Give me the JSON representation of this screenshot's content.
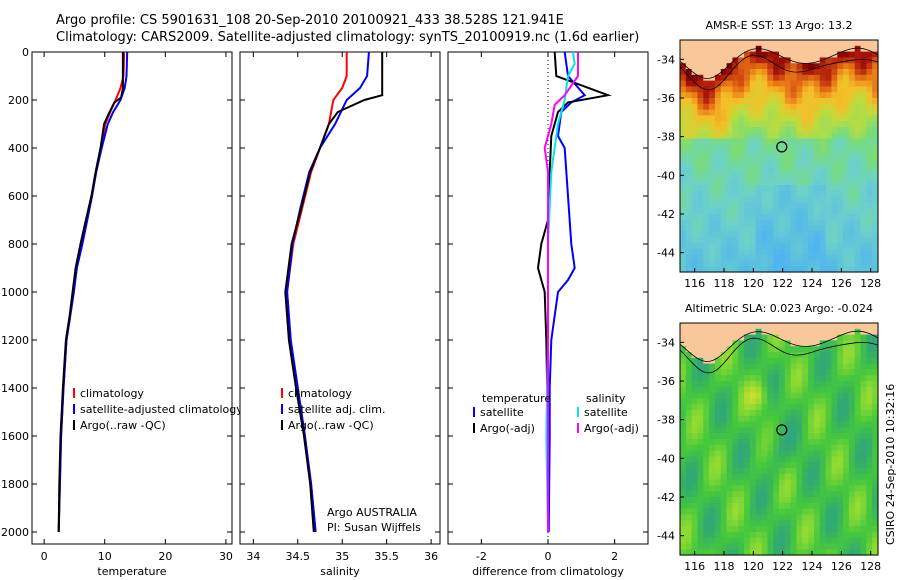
{
  "header": {
    "line1": "Argo profile: CS 5901631_108 20-Sep-2010 20100921_433 38.528S 121.941E",
    "line2": "Climatology: CARS2009. Satellite-adjusted climatology: synTS_20100919.nc (1.6d earlier)"
  },
  "credit": "CSIRO 24-Sep-2010 10:32:16",
  "colors": {
    "climatology": "#ff0000",
    "satellite": "#0000ff",
    "argo": "#000000",
    "sat_diff": "#00e5ee",
    "argo_diff": "#ff00ff",
    "land": "#f8c89a"
  },
  "chart_data": [
    {
      "type": "line",
      "xlabel": "temperature",
      "xlim": [
        -2,
        31
      ],
      "ylim": [
        0,
        2050
      ],
      "y_reversed": true,
      "xticks": [
        0,
        10,
        20,
        30
      ],
      "yticks": [
        0,
        200,
        400,
        600,
        800,
        1000,
        1200,
        1400,
        1600,
        1800,
        2000
      ],
      "legend": [
        "climatology",
        "satellite-adjusted climatology",
        "Argo(..raw -QC)"
      ],
      "series": [
        {
          "name": "climatology",
          "color": "#ff0000",
          "points": [
            [
              13.2,
              0
            ],
            [
              13.1,
              100
            ],
            [
              12.6,
              150
            ],
            [
              11.8,
              200
            ],
            [
              10.9,
              250
            ],
            [
              10.1,
              300
            ],
            [
              9.4,
              400
            ],
            [
              8.6,
              500
            ],
            [
              7.9,
              600
            ],
            [
              7.1,
              700
            ],
            [
              6.3,
              800
            ],
            [
              5.4,
              900
            ],
            [
              4.9,
              1000
            ],
            [
              4.3,
              1100
            ],
            [
              3.7,
              1200
            ],
            [
              3.2,
              1400
            ],
            [
              2.8,
              1600
            ],
            [
              2.6,
              1800
            ],
            [
              2.4,
              2000
            ]
          ]
        },
        {
          "name": "satellite-adjusted climatology",
          "color": "#0000ff",
          "points": [
            [
              13.7,
              0
            ],
            [
              13.6,
              100
            ],
            [
              13.3,
              150
            ],
            [
              12.6,
              200
            ],
            [
              11.4,
              250
            ],
            [
              10.5,
              300
            ],
            [
              9.5,
              400
            ],
            [
              8.6,
              500
            ],
            [
              7.9,
              600
            ],
            [
              7.1,
              700
            ],
            [
              6.3,
              800
            ],
            [
              5.4,
              900
            ],
            [
              4.9,
              1000
            ],
            [
              4.3,
              1100
            ],
            [
              3.7,
              1200
            ],
            [
              3.2,
              1400
            ],
            [
              2.8,
              1600
            ],
            [
              2.6,
              1800
            ],
            [
              2.4,
              2000
            ]
          ]
        },
        {
          "name": "Argo(..raw -QC)",
          "color": "#000000",
          "points": [
            [
              13.0,
              0
            ],
            [
              13.0,
              150
            ],
            [
              12.7,
              190
            ],
            [
              11.6,
              210
            ],
            [
              10.6,
              260
            ],
            [
              9.9,
              300
            ],
            [
              9.3,
              400
            ],
            [
              8.5,
              500
            ],
            [
              7.8,
              600
            ],
            [
              6.9,
              700
            ],
            [
              6.0,
              800
            ],
            [
              5.2,
              900
            ],
            [
              4.7,
              1000
            ],
            [
              4.2,
              1100
            ],
            [
              3.6,
              1200
            ],
            [
              3.1,
              1400
            ],
            [
              2.7,
              1600
            ],
            [
              2.5,
              1800
            ],
            [
              2.4,
              2000
            ]
          ]
        }
      ]
    },
    {
      "type": "line",
      "xlabel": "salinity",
      "xlim": [
        33.85,
        36.1
      ],
      "ylim": [
        0,
        2050
      ],
      "y_reversed": true,
      "xticks": [
        34,
        34.5,
        35,
        35.5,
        36
      ],
      "xtick_labels": [
        "34",
        "34.5",
        "35",
        "35.5",
        "36"
      ],
      "yticks": [
        0,
        200,
        400,
        600,
        800,
        1000,
        1200,
        1400,
        1600,
        1800,
        2000
      ],
      "legend": [
        "climatology",
        "satellite adj. clim.",
        "Argo(..raw -QC)"
      ],
      "annotations": [
        "Argo AUSTRALIA",
        "PI: Susan Wijffels"
      ],
      "series": [
        {
          "name": "climatology",
          "color": "#ff0000",
          "points": [
            [
              35.05,
              0
            ],
            [
              35.05,
              100
            ],
            [
              35.0,
              150
            ],
            [
              34.9,
              200
            ],
            [
              34.85,
              300
            ],
            [
              34.75,
              400
            ],
            [
              34.65,
              500
            ],
            [
              34.55,
              650
            ],
            [
              34.45,
              800
            ],
            [
              34.38,
              1000
            ],
            [
              34.42,
              1200
            ],
            [
              34.5,
              1400
            ],
            [
              34.58,
              1600
            ],
            [
              34.65,
              1800
            ],
            [
              34.7,
              2000
            ]
          ]
        },
        {
          "name": "satellite adj. clim.",
          "color": "#0000ff",
          "points": [
            [
              35.3,
              0
            ],
            [
              35.28,
              100
            ],
            [
              35.2,
              150
            ],
            [
              35.05,
              200
            ],
            [
              34.92,
              300
            ],
            [
              34.75,
              400
            ],
            [
              34.63,
              500
            ],
            [
              34.53,
              650
            ],
            [
              34.44,
              800
            ],
            [
              34.38,
              1000
            ],
            [
              34.42,
              1200
            ],
            [
              34.5,
              1400
            ],
            [
              34.58,
              1600
            ],
            [
              34.65,
              1800
            ],
            [
              34.7,
              2000
            ]
          ]
        },
        {
          "name": "Argo(..raw -QC)",
          "color": "#000000",
          "points": [
            [
              35.45,
              0
            ],
            [
              35.45,
              180
            ],
            [
              35.25,
              200
            ],
            [
              34.95,
              250
            ],
            [
              34.85,
              300
            ],
            [
              34.75,
              400
            ],
            [
              34.64,
              500
            ],
            [
              34.54,
              650
            ],
            [
              34.43,
              800
            ],
            [
              34.36,
              1000
            ],
            [
              34.4,
              1200
            ],
            [
              34.48,
              1400
            ],
            [
              34.57,
              1600
            ],
            [
              34.64,
              1800
            ],
            [
              34.68,
              2000
            ]
          ]
        }
      ]
    },
    {
      "type": "line",
      "xlabel": "difference from climatology",
      "xlim": [
        -3,
        3
      ],
      "ylim": [
        0,
        2050
      ],
      "y_reversed": true,
      "xticks": [
        -2,
        0,
        2
      ],
      "yticks": [
        0,
        200,
        400,
        600,
        800,
        1000,
        1200,
        1400,
        1600,
        1800,
        2000
      ],
      "legend_groups": [
        {
          "title": "temperature",
          "items": [
            "satellite",
            "Argo(-adj)"
          ]
        },
        {
          "title": "salinity",
          "items": [
            "satellite",
            "Argo(-adj)"
          ]
        }
      ],
      "series": [
        {
          "name": "temperature satellite",
          "color": "#0000ff",
          "points": [
            [
              0.5,
              0
            ],
            [
              0.6,
              100
            ],
            [
              1.1,
              180
            ],
            [
              0.7,
              210
            ],
            [
              0.4,
              250
            ],
            [
              0.3,
              350
            ],
            [
              0.5,
              400
            ],
            [
              0.6,
              600
            ],
            [
              0.7,
              800
            ],
            [
              0.8,
              900
            ],
            [
              0.6,
              950
            ],
            [
              0.3,
              1000
            ],
            [
              0.1,
              1200
            ],
            [
              0.05,
              1400
            ],
            [
              0.05,
              1600
            ],
            [
              0.02,
              2000
            ]
          ]
        },
        {
          "name": "temperature Argo(-adj)",
          "color": "#000000",
          "points": [
            [
              0.2,
              0
            ],
            [
              0.25,
              100
            ],
            [
              1.8,
              180
            ],
            [
              0.6,
              210
            ],
            [
              0.3,
              250
            ],
            [
              0.1,
              350
            ],
            [
              0.05,
              500
            ],
            [
              0.0,
              700
            ],
            [
              -0.2,
              800
            ],
            [
              -0.3,
              900
            ],
            [
              -0.1,
              1000
            ],
            [
              -0.05,
              1200
            ],
            [
              0.0,
              1600
            ],
            [
              0.0,
              2000
            ]
          ]
        },
        {
          "name": "salinity satellite",
          "color": "#00e5ee",
          "points": [
            [
              0.75,
              0
            ],
            [
              0.8,
              50
            ],
            [
              0.6,
              100
            ],
            [
              0.5,
              200
            ],
            [
              0.3,
              300
            ],
            [
              0.1,
              500
            ],
            [
              0.0,
              800
            ],
            [
              0.0,
              1200
            ],
            [
              -0.05,
              1600
            ],
            [
              0.0,
              2000
            ]
          ]
        },
        {
          "name": "salinity Argo(-adj)",
          "color": "#ff00ff",
          "points": [
            [
              0.9,
              0
            ],
            [
              0.9,
              100
            ],
            [
              0.5,
              180
            ],
            [
              0.2,
              220
            ],
            [
              0.1,
              300
            ],
            [
              -0.1,
              400
            ],
            [
              0.0,
              500
            ],
            [
              0.0,
              800
            ],
            [
              0.0,
              1200
            ],
            [
              0.0,
              2000
            ]
          ]
        }
      ]
    },
    {
      "type": "heatmap",
      "title": "AMSR-E SST: 13 Argo: 13.2",
      "xlim": [
        115,
        128.5
      ],
      "ylim": [
        -45,
        -33
      ],
      "xticks": [
        116,
        118,
        120,
        122,
        124,
        126,
        128
      ],
      "yticks": [
        -34,
        -36,
        -38,
        -40,
        -42,
        -44
      ],
      "marker": [
        121.941,
        -38.528
      ],
      "grid": false
    },
    {
      "type": "heatmap",
      "title": "Altimetric SLA: 0.023 Argo: -0.024",
      "xlim": [
        115,
        128.5
      ],
      "ylim": [
        -45,
        -33
      ],
      "xticks": [
        116,
        118,
        120,
        122,
        124,
        126,
        128
      ],
      "yticks": [
        -34,
        -36,
        -38,
        -40,
        -42,
        -44
      ],
      "marker": [
        121.941,
        -38.528
      ],
      "grid": false
    }
  ]
}
